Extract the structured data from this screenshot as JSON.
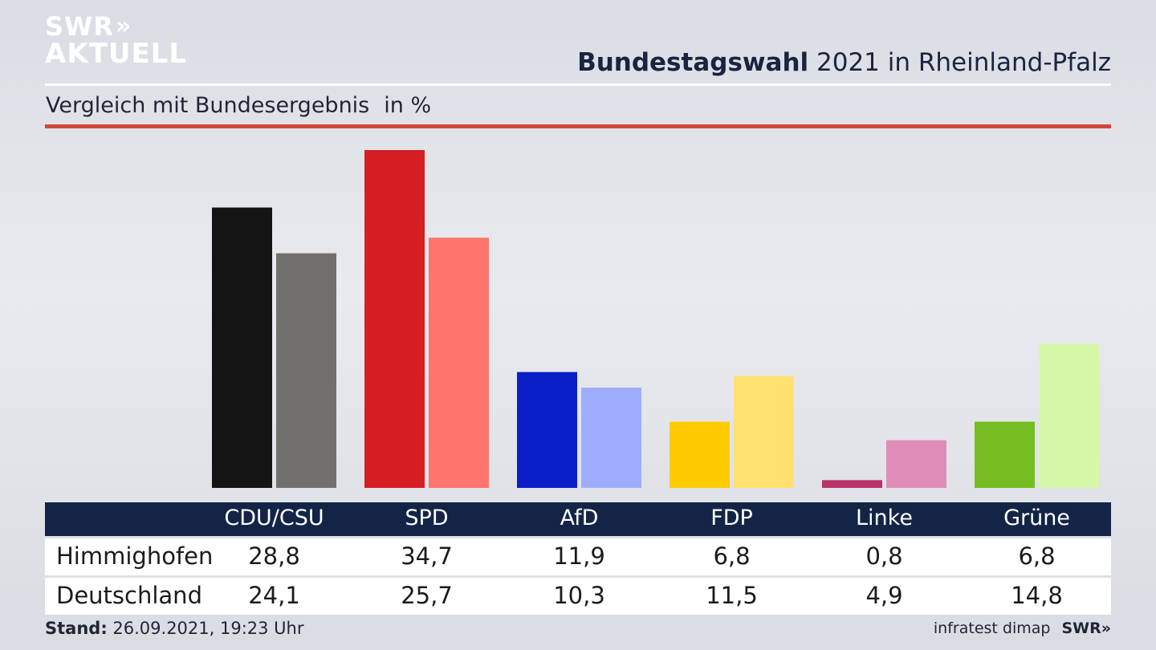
{
  "logo": {
    "line1": "SWR",
    "chevrons": "»",
    "line2": "AKTUELL"
  },
  "header": {
    "title_bold": "Bundestagswahl",
    "title_rest": " 2021 in Rheinland-Pfalz"
  },
  "subheader": {
    "text": "Vergleich mit Bundesergebnis",
    "unit": "in %"
  },
  "colors": {
    "accent_line": "#d5473c",
    "table_header_bg": "#142446"
  },
  "chart_data": {
    "type": "bar",
    "categories": [
      "CDU/CSU",
      "SPD",
      "AfD",
      "FDP",
      "Linke",
      "Grüne"
    ],
    "series": [
      {
        "name": "Himmighofen",
        "values": [
          28.8,
          34.7,
          11.9,
          6.8,
          0.8,
          6.8
        ],
        "colors": [
          "#141414",
          "#d51f22",
          "#0a1fc8",
          "#ffcc00",
          "#b8336a",
          "#75bd20"
        ]
      },
      {
        "name": "Deutschland",
        "values": [
          24.1,
          25.7,
          10.3,
          11.5,
          4.9,
          14.8
        ],
        "colors": [
          "#72706e",
          "#ff746d",
          "#9fadff",
          "#ffe170",
          "#e08cb8",
          "#d7f7a9"
        ]
      }
    ],
    "value_labels": [
      [
        "28,8",
        "34,7",
        "11,9",
        "6,8",
        "0,8",
        "6,8"
      ],
      [
        "24,1",
        "25,7",
        "10,3",
        "11,5",
        "4,9",
        "14,8"
      ]
    ],
    "ylim": [
      0,
      34.7
    ],
    "grid": false,
    "legend": "table below chart"
  },
  "footer": {
    "stand_label": "Stand:",
    "stand_value": " 26.09.2021, 19:23 Uhr",
    "source": "infratest dimap",
    "brand": "SWR»"
  }
}
